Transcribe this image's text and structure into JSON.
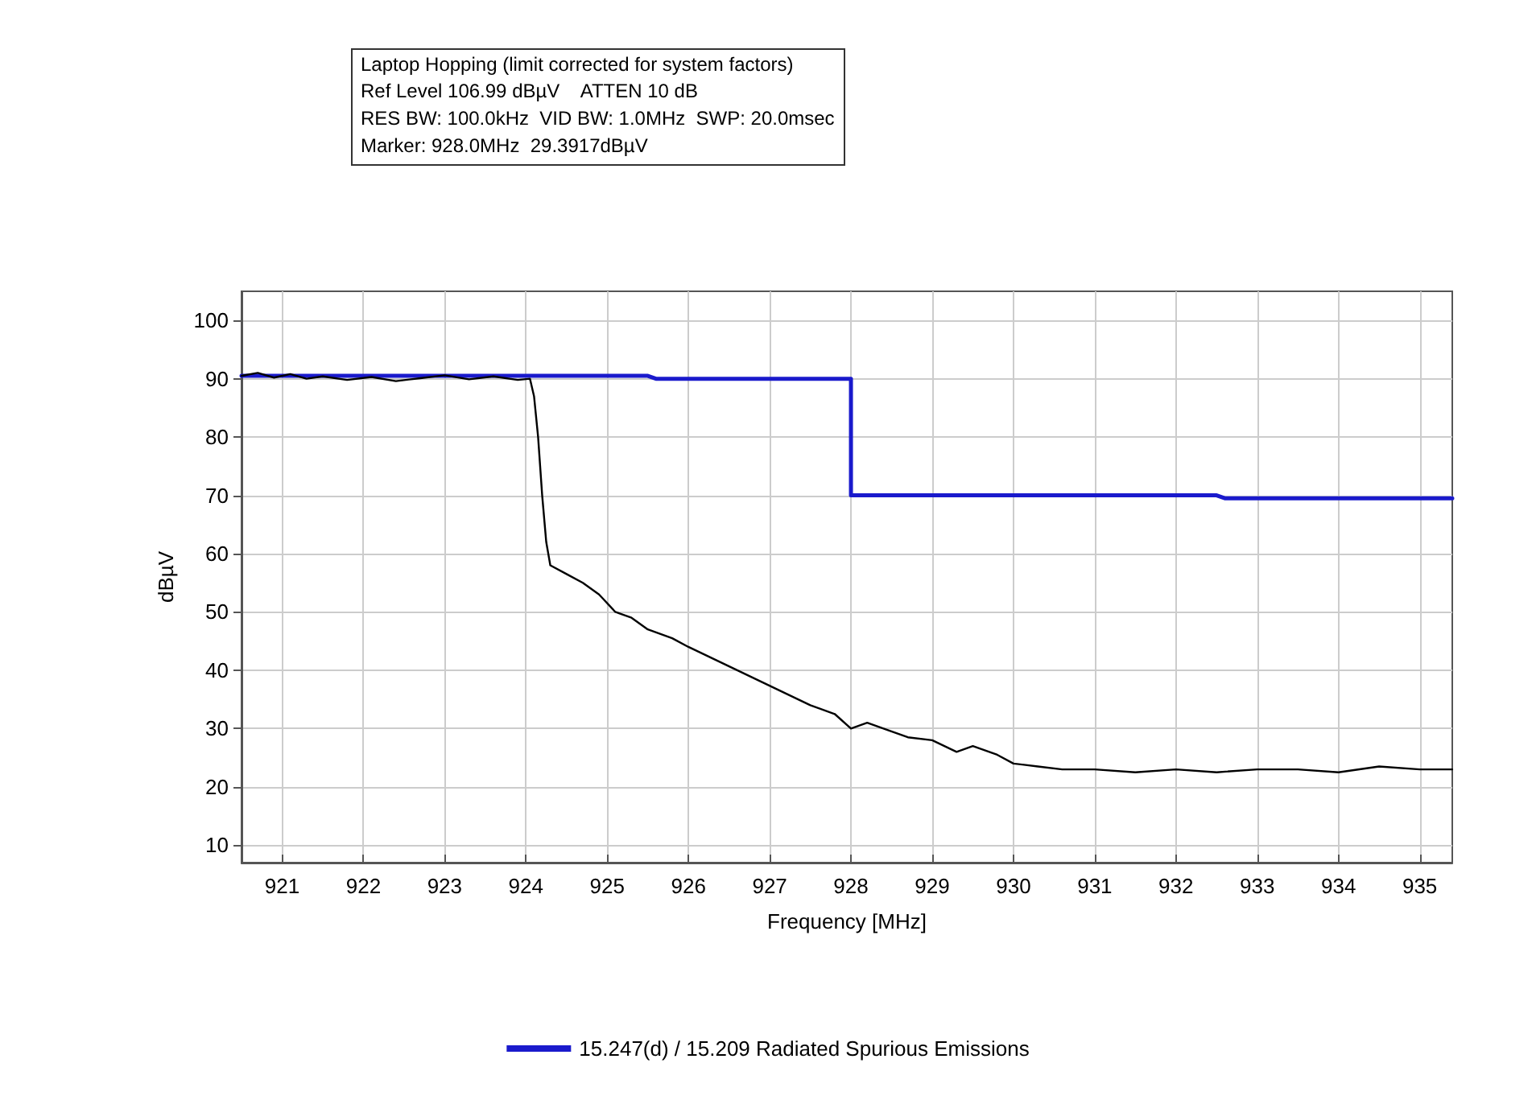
{
  "chart_data": {
    "type": "line",
    "title": "Laptop Hopping (limit corrected for system factors)",
    "subtitle": "Ref Level 106.99 dBµV    ATTEN 10 dB\nRES BW: 100.0kHz  VID BW: 1.0MHz  SWP: 20.0msec\nMarker: 928.0MHz  29.3917dBµV",
    "xlabel": "Frequency [MHz]",
    "ylabel": "dBµV",
    "xlim": [
      920.5,
      935.4
    ],
    "ylim": [
      7,
      105
    ],
    "xticks": [
      921,
      922,
      923,
      924,
      925,
      926,
      927,
      928,
      929,
      930,
      931,
      932,
      933,
      934,
      935
    ],
    "yticks": [
      10,
      20,
      30,
      40,
      50,
      60,
      70,
      80,
      90,
      100
    ],
    "grid": true,
    "legend": "bottom",
    "marker": "none",
    "line_style": "solid",
    "series": [
      {
        "color": "#000000",
        "x": [
          920.5,
          920.7,
          920.9,
          921.1,
          921.3,
          921.5,
          921.8,
          922.1,
          922.4,
          922.7,
          923.0,
          923.3,
          923.6,
          923.9,
          924.05,
          924.1,
          924.15,
          924.2,
          924.25,
          924.3,
          924.5,
          924.7,
          924.9,
          925.1,
          925.3,
          925.5,
          925.8,
          926.0,
          926.3,
          926.6,
          926.9,
          927.2,
          927.5,
          927.8,
          928.0,
          928.2,
          928.4,
          928.7,
          929.0,
          929.3,
          929.5,
          929.8,
          930.0,
          930.3,
          930.6,
          931.0,
          931.5,
          932.0,
          932.5,
          933.0,
          933.5,
          934.0,
          934.5,
          935.0,
          935.4
        ],
        "values": [
          90.5,
          91,
          90.2,
          90.8,
          90,
          90.4,
          89.8,
          90.3,
          89.6,
          90.1,
          90.6,
          89.9,
          90.4,
          89.8,
          90,
          87,
          80,
          70,
          62,
          58,
          56.5,
          55,
          53,
          50,
          49,
          47,
          45.5,
          44,
          42,
          40,
          38,
          36,
          34,
          32.5,
          30,
          31,
          30,
          28.5,
          28,
          26,
          27,
          25.5,
          24,
          23.5,
          23,
          23,
          22.5,
          23,
          22.5,
          23,
          23,
          22.5,
          23.5,
          23,
          23
        ]
      },
      {
        "name": "15.247(d) / 15.209 Radiated Spurious Emissions",
        "color": "#1a1acc",
        "x": [
          920.5,
          925.5,
          925.6,
          928,
          928,
          932.5,
          932.6,
          935.4
        ],
        "values": [
          90.5,
          90.5,
          90,
          90,
          70,
          70,
          69.5,
          69.5
        ]
      }
    ]
  }
}
